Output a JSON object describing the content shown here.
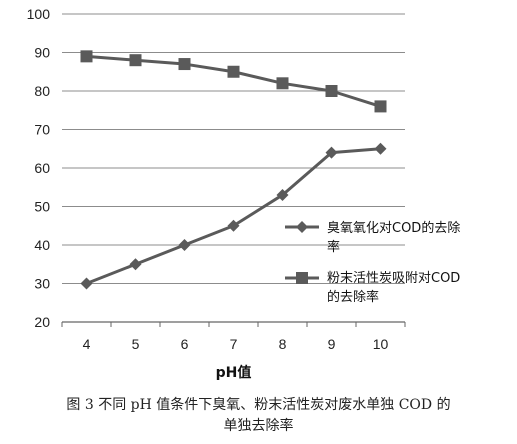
{
  "chart_data": {
    "type": "line",
    "x": [
      4,
      5,
      6,
      7,
      8,
      9,
      10
    ],
    "xlabel": "pH值",
    "ylabel": "",
    "ylim": [
      20,
      100
    ],
    "yticks": [
      20,
      30,
      40,
      50,
      60,
      70,
      80,
      90,
      100
    ],
    "grid": "horizontal",
    "legend_position": "right",
    "series": [
      {
        "name": "臭氧氧化对COD的去除率",
        "marker": "diamond",
        "color": "#5a5a5a",
        "values": [
          30,
          35,
          40,
          45,
          53,
          64,
          65
        ]
      },
      {
        "name": "粉末活性炭吸附对COD的去除率",
        "marker": "square",
        "color": "#5a5a5a",
        "values": [
          89,
          88,
          87,
          85,
          82,
          80,
          76
        ]
      }
    ]
  },
  "legend": {
    "series1_line1": "臭氧氧化对COD的去除",
    "series1_line2": "率",
    "series2_line1": "粉末活性炭吸附对COD",
    "series2_line2": "的去除率"
  },
  "caption": {
    "line1": "图 3   不同 pH 值条件下臭氧、粉末活性炭对废水单独 COD 的",
    "line2": "单独去除率"
  }
}
